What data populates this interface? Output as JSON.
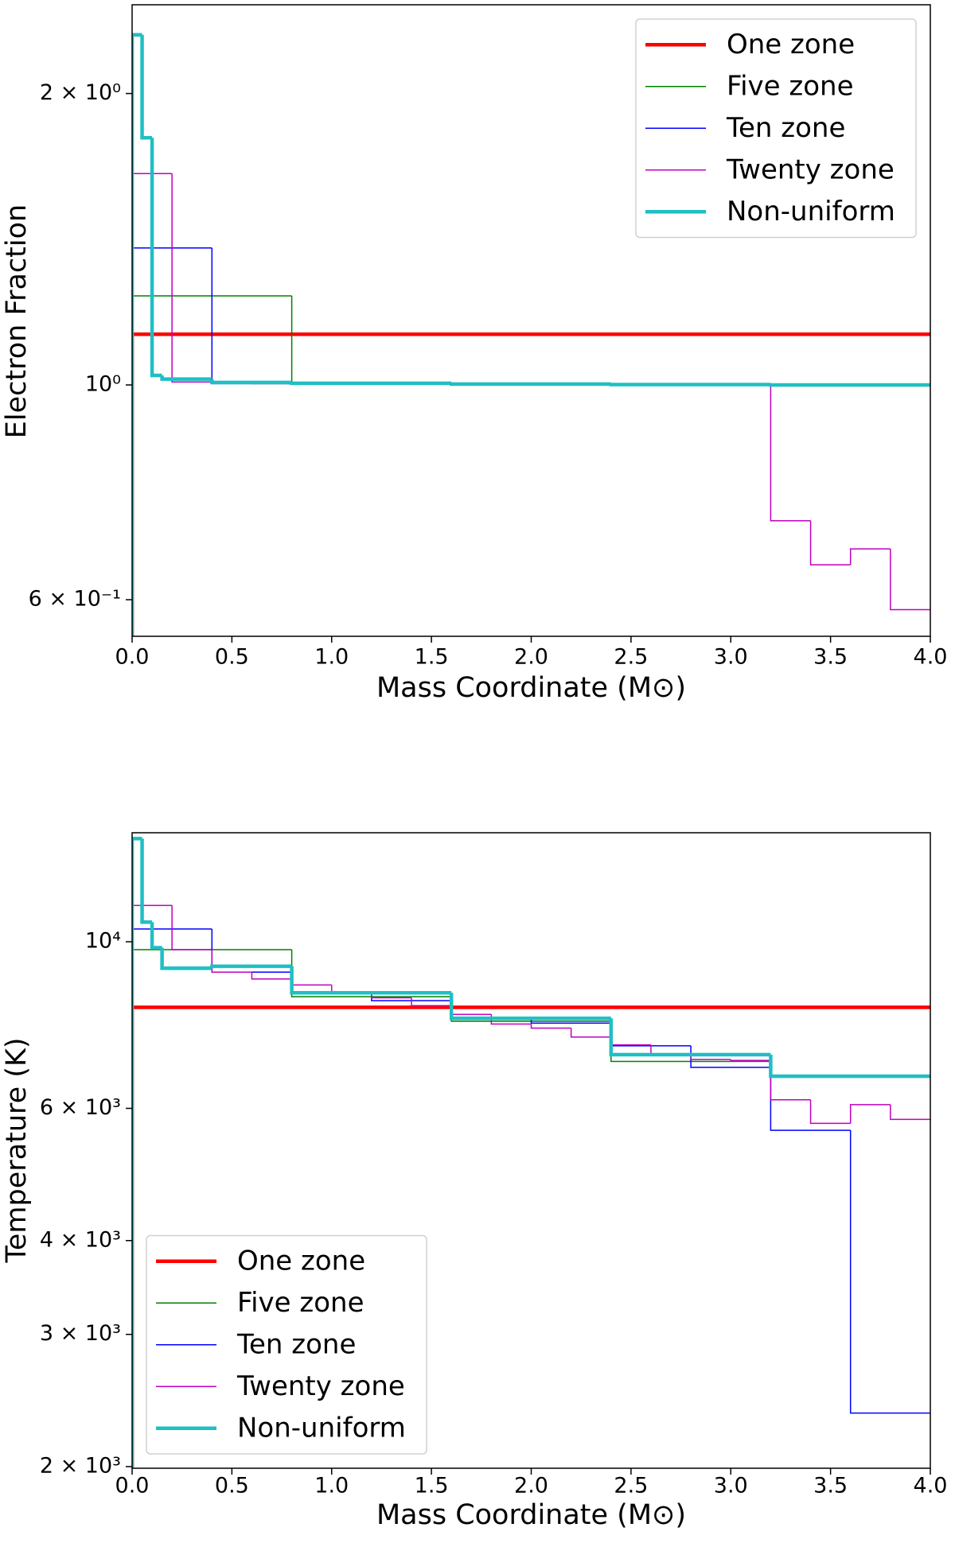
{
  "chart_data": [
    {
      "type": "step",
      "yscale": "log",
      "legend": "upper right",
      "xlabel": "Mass Coordinate (M⊙)",
      "ylabel": "Electron Fraction",
      "xlim": [
        0,
        4
      ],
      "ylim": [
        0.55,
        2.47
      ],
      "xticks": [
        {
          "value": 0,
          "label": "0.0"
        },
        0.5,
        {
          "value": 1,
          "label": "1.0"
        },
        1.5,
        {
          "value": 2,
          "label": "2.0"
        },
        2.5,
        {
          "value": 3,
          "label": "3.0"
        },
        3.5,
        {
          "value": 4,
          "label": "4.0"
        }
      ],
      "yticks": [
        {
          "value": 2,
          "label": "2 × 10⁰"
        },
        {
          "value": 1,
          "label": "10⁰"
        },
        {
          "value": 0.6,
          "label": "6 × 10⁻¹"
        }
      ],
      "series": [
        {
          "name": "One zone",
          "color": "#ff0000",
          "linewidth": 4.5,
          "bins": [
            0,
            4
          ],
          "values": [
            1.128
          ]
        },
        {
          "name": "Five zone",
          "color": "#008000",
          "linewidth": 1.5,
          "bins": [
            0,
            0.8,
            1.6,
            2.4,
            3.2,
            4.0
          ],
          "values": [
            1.236,
            1.005,
            1.003,
            1.001,
            1.0
          ]
        },
        {
          "name": "Ten zone",
          "color": "#0000ff",
          "linewidth": 1.5,
          "bins": [
            0,
            0.4,
            0.8,
            1.2,
            1.6,
            2.0,
            2.4,
            2.8,
            3.2,
            3.6,
            4.0
          ],
          "values": [
            1.385,
            1.003,
            1.004,
            1.003,
            1.002,
            1.001,
            1.001,
            1.001,
            1.0,
            1.0
          ]
        },
        {
          "name": "Twenty zone",
          "color": "#bf00bf",
          "linewidth": 1.5,
          "bins": [
            0,
            0.2,
            0.4,
            0.6,
            0.8,
            1.0,
            1.2,
            1.4,
            1.6,
            1.8,
            2.0,
            2.2,
            2.4,
            2.6,
            2.8,
            3.0,
            3.2,
            3.4,
            3.6,
            3.8,
            4.0
          ],
          "values": [
            1.653,
            1.007,
            1.004,
            1.003,
            1.003,
            1.002,
            1.002,
            1.002,
            1.001,
            1.001,
            1.001,
            1.001,
            1.0,
            1.0,
            1.0,
            1.0,
            0.724,
            0.652,
            0.677,
            0.586
          ]
        },
        {
          "name": "Non-uniform",
          "color": "#1fbfc4",
          "linewidth": 4.5,
          "bins": [
            0,
            0.05,
            0.1,
            0.15,
            0.4,
            0.8,
            1.6,
            2.4,
            3.2,
            4.0
          ],
          "values": [
            2.3,
            1.8,
            1.023,
            1.014,
            1.006,
            1.004,
            1.002,
            1.001,
            1.0
          ]
        }
      ]
    },
    {
      "type": "step",
      "yscale": "log",
      "legend": "lower left",
      "xlabel": "Mass Coordinate (M⊙)",
      "ylabel": "Temperature (K)",
      "xlim": [
        0,
        4
      ],
      "ylim": [
        1990,
        13970
      ],
      "xticks": [
        {
          "value": 0,
          "label": "0.0"
        },
        0.5,
        {
          "value": 1,
          "label": "1.0"
        },
        1.5,
        {
          "value": 2,
          "label": "2.0"
        },
        2.5,
        {
          "value": 3,
          "label": "3.0"
        },
        3.5,
        {
          "value": 4,
          "label": "4.0"
        }
      ],
      "yticks": [
        {
          "value": 10000,
          "label": "10⁴"
        },
        {
          "value": 6000,
          "label": "6 × 10³"
        },
        {
          "value": 4000,
          "label": "4 × 10³"
        },
        {
          "value": 3000,
          "label": "3 × 10³"
        },
        {
          "value": 2000,
          "label": "2 × 10³"
        }
      ],
      "series": [
        {
          "name": "One zone",
          "color": "#ff0000",
          "linewidth": 4.5,
          "bins": [
            0,
            4
          ],
          "values": [
            8180
          ]
        },
        {
          "name": "Five zone",
          "color": "#008000",
          "linewidth": 1.5,
          "bins": [
            0,
            0.8,
            1.6,
            2.4,
            3.2,
            4.0
          ],
          "values": [
            9761,
            8449,
            7836,
            6928,
            6622
          ]
        },
        {
          "name": "Ten zone",
          "color": "#0000ff",
          "linewidth": 1.5,
          "bins": [
            0,
            0.4,
            0.8,
            1.2,
            1.6,
            2.0,
            2.4,
            2.8,
            3.2,
            3.6,
            4.0
          ],
          "values": [
            10399,
            9110,
            8551,
            8347,
            7907,
            7792,
            7268,
            6803,
            5610,
            2357
          ]
        },
        {
          "name": "Twenty zone",
          "color": "#bf00bf",
          "linewidth": 1.5,
          "bins": [
            0,
            0.2,
            0.4,
            0.6,
            0.8,
            1.0,
            1.2,
            1.4,
            1.6,
            1.8,
            2.0,
            2.2,
            2.4,
            2.6,
            2.8,
            3.0,
            3.2,
            3.4,
            3.6,
            3.8,
            4.0
          ],
          "values": [
            11180,
            9761,
            9110,
            8920,
            8760,
            8551,
            8423,
            8222,
            8003,
            7770,
            7674,
            7466,
            7289,
            7096,
            6969,
            6950,
            6160,
            5730,
            6068,
            5800
          ]
        },
        {
          "name": "Non-uniform",
          "color": "#1fbfc4",
          "linewidth": 4.5,
          "bins": [
            0,
            0.05,
            0.1,
            0.15,
            0.4,
            0.8,
            1.6,
            2.4,
            3.2,
            4.0
          ],
          "values": [
            13720,
            10620,
            9820,
            9220,
            9275,
            8551,
            7907,
            7075,
            6622
          ]
        }
      ]
    }
  ]
}
